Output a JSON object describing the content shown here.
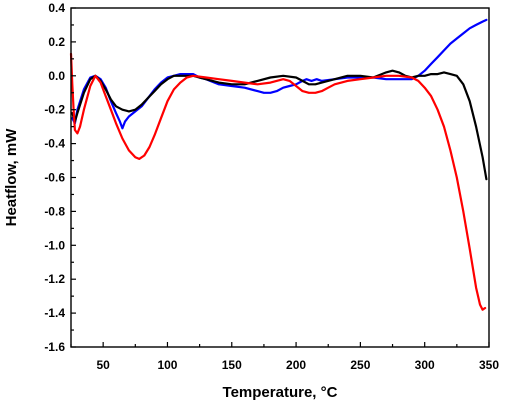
{
  "chart_data": {
    "type": "line",
    "title": "",
    "xlabel": "Temperature, °C",
    "ylabel": "Heatflow, mW",
    "xlim": [
      25,
      350
    ],
    "ylim": [
      -1.6,
      0.4
    ],
    "x_ticks": [
      50,
      100,
      150,
      200,
      250,
      300,
      350
    ],
    "y_ticks": [
      0.4,
      0.2,
      0.0,
      -0.2,
      -0.4,
      -0.6,
      -0.8,
      -1.0,
      -1.2,
      -1.4,
      -1.6
    ],
    "y_tick_labels": [
      "0.4",
      "0.2",
      "0.0",
      "-0.2",
      "-0.4",
      "-0.6",
      "-0.8",
      "-1.0",
      "-1.2",
      "-1.4",
      "-1.6"
    ],
    "grid": false,
    "legend": "none",
    "series": [
      {
        "color": "#0000ff",
        "points": [
          [
            26,
            -0.25
          ],
          [
            28,
            -0.28
          ],
          [
            30,
            -0.2
          ],
          [
            35,
            -0.08
          ],
          [
            40,
            -0.01
          ],
          [
            44,
            0.0
          ],
          [
            48,
            -0.02
          ],
          [
            52,
            -0.07
          ],
          [
            56,
            -0.15
          ],
          [
            60,
            -0.22
          ],
          [
            63,
            -0.27
          ],
          [
            65,
            -0.31
          ],
          [
            67,
            -0.27
          ],
          [
            70,
            -0.24
          ],
          [
            75,
            -0.21
          ],
          [
            80,
            -0.18
          ],
          [
            85,
            -0.13
          ],
          [
            90,
            -0.08
          ],
          [
            95,
            -0.04
          ],
          [
            100,
            -0.01
          ],
          [
            105,
            0.0
          ],
          [
            110,
            0.01
          ],
          [
            115,
            0.01
          ],
          [
            120,
            0.01
          ],
          [
            125,
            -0.01
          ],
          [
            130,
            -0.02
          ],
          [
            140,
            -0.05
          ],
          [
            150,
            -0.06
          ],
          [
            160,
            -0.07
          ],
          [
            170,
            -0.09
          ],
          [
            175,
            -0.1
          ],
          [
            180,
            -0.1
          ],
          [
            185,
            -0.09
          ],
          [
            190,
            -0.07
          ],
          [
            195,
            -0.06
          ],
          [
            200,
            -0.05
          ],
          [
            205,
            -0.03
          ],
          [
            208,
            -0.02
          ],
          [
            212,
            -0.03
          ],
          [
            216,
            -0.02
          ],
          [
            220,
            -0.03
          ],
          [
            230,
            -0.02
          ],
          [
            240,
            -0.01
          ],
          [
            250,
            -0.01
          ],
          [
            260,
            -0.01
          ],
          [
            270,
            -0.02
          ],
          [
            280,
            -0.02
          ],
          [
            290,
            -0.02
          ],
          [
            295,
            0.0
          ],
          [
            300,
            0.03
          ],
          [
            305,
            0.07
          ],
          [
            310,
            0.11
          ],
          [
            315,
            0.15
          ],
          [
            320,
            0.19
          ],
          [
            325,
            0.22
          ],
          [
            330,
            0.25
          ],
          [
            335,
            0.28
          ],
          [
            340,
            0.3
          ],
          [
            345,
            0.32
          ],
          [
            348,
            0.33
          ]
        ]
      },
      {
        "color": "#000000",
        "points": [
          [
            26,
            -0.22
          ],
          [
            28,
            -0.27
          ],
          [
            30,
            -0.22
          ],
          [
            35,
            -0.1
          ],
          [
            40,
            -0.02
          ],
          [
            44,
            0.0
          ],
          [
            48,
            -0.03
          ],
          [
            52,
            -0.08
          ],
          [
            56,
            -0.14
          ],
          [
            60,
            -0.18
          ],
          [
            65,
            -0.2
          ],
          [
            70,
            -0.21
          ],
          [
            75,
            -0.2
          ],
          [
            80,
            -0.17
          ],
          [
            85,
            -0.13
          ],
          [
            90,
            -0.09
          ],
          [
            95,
            -0.05
          ],
          [
            100,
            -0.02
          ],
          [
            105,
            0.0
          ],
          [
            110,
            0.0
          ],
          [
            115,
            0.0
          ],
          [
            120,
            0.0
          ],
          [
            125,
            -0.01
          ],
          [
            130,
            -0.02
          ],
          [
            135,
            -0.03
          ],
          [
            140,
            -0.04
          ],
          [
            150,
            -0.05
          ],
          [
            160,
            -0.05
          ],
          [
            170,
            -0.03
          ],
          [
            180,
            -0.01
          ],
          [
            190,
            0.0
          ],
          [
            200,
            -0.01
          ],
          [
            205,
            -0.03
          ],
          [
            210,
            -0.05
          ],
          [
            215,
            -0.05
          ],
          [
            220,
            -0.04
          ],
          [
            230,
            -0.02
          ],
          [
            240,
            0.0
          ],
          [
            250,
            0.0
          ],
          [
            260,
            -0.01
          ],
          [
            270,
            0.02
          ],
          [
            275,
            0.03
          ],
          [
            280,
            0.02
          ],
          [
            285,
            0.0
          ],
          [
            290,
            -0.01
          ],
          [
            295,
            0.0
          ],
          [
            300,
            0.0
          ],
          [
            305,
            0.01
          ],
          [
            310,
            0.01
          ],
          [
            315,
            0.02
          ],
          [
            320,
            0.01
          ],
          [
            325,
            0.0
          ],
          [
            330,
            -0.05
          ],
          [
            335,
            -0.15
          ],
          [
            340,
            -0.3
          ],
          [
            345,
            -0.48
          ],
          [
            348,
            -0.61
          ]
        ]
      },
      {
        "color": "#ff0000",
        "points": [
          [
            25,
            0.13
          ],
          [
            26,
            -0.05
          ],
          [
            27,
            -0.2
          ],
          [
            28,
            -0.32
          ],
          [
            30,
            -0.34
          ],
          [
            32,
            -0.3
          ],
          [
            35,
            -0.2
          ],
          [
            40,
            -0.06
          ],
          [
            44,
            0.0
          ],
          [
            48,
            -0.04
          ],
          [
            52,
            -0.12
          ],
          [
            56,
            -0.2
          ],
          [
            60,
            -0.28
          ],
          [
            65,
            -0.37
          ],
          [
            70,
            -0.44
          ],
          [
            75,
            -0.48
          ],
          [
            78,
            -0.49
          ],
          [
            82,
            -0.47
          ],
          [
            86,
            -0.42
          ],
          [
            90,
            -0.35
          ],
          [
            95,
            -0.25
          ],
          [
            100,
            -0.15
          ],
          [
            105,
            -0.08
          ],
          [
            110,
            -0.04
          ],
          [
            115,
            -0.01
          ],
          [
            120,
            0.0
          ],
          [
            130,
            -0.01
          ],
          [
            140,
            -0.02
          ],
          [
            150,
            -0.03
          ],
          [
            160,
            -0.04
          ],
          [
            170,
            -0.05
          ],
          [
            180,
            -0.04
          ],
          [
            190,
            -0.02
          ],
          [
            195,
            -0.03
          ],
          [
            200,
            -0.06
          ],
          [
            205,
            -0.09
          ],
          [
            210,
            -0.1
          ],
          [
            215,
            -0.1
          ],
          [
            220,
            -0.09
          ],
          [
            225,
            -0.07
          ],
          [
            230,
            -0.05
          ],
          [
            240,
            -0.03
          ],
          [
            250,
            -0.02
          ],
          [
            260,
            -0.01
          ],
          [
            270,
            0.0
          ],
          [
            280,
            0.0
          ],
          [
            290,
            -0.01
          ],
          [
            295,
            -0.03
          ],
          [
            300,
            -0.07
          ],
          [
            305,
            -0.12
          ],
          [
            310,
            -0.2
          ],
          [
            315,
            -0.3
          ],
          [
            320,
            -0.44
          ],
          [
            325,
            -0.6
          ],
          [
            330,
            -0.8
          ],
          [
            335,
            -1.02
          ],
          [
            340,
            -1.25
          ],
          [
            343,
            -1.35
          ],
          [
            345,
            -1.38
          ],
          [
            347,
            -1.37
          ]
        ]
      }
    ]
  }
}
